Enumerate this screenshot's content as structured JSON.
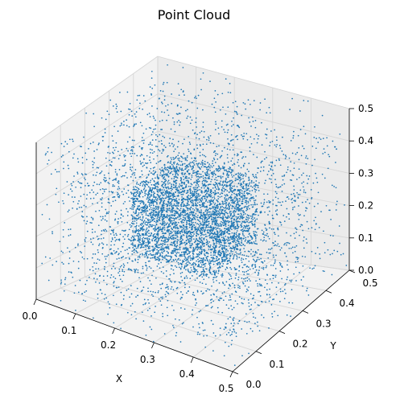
{
  "chart_data": {
    "type": "scatter",
    "projection": "3d",
    "title": "Point Cloud",
    "xlabel": "X",
    "ylabel": "Y",
    "zlabel": "",
    "xlim": [
      0.0,
      0.5
    ],
    "ylim": [
      0.0,
      0.5
    ],
    "zlim": [
      0.0,
      0.5
    ],
    "xticks": [
      "0.0",
      "0.1",
      "0.2",
      "0.3",
      "0.4",
      "0.5"
    ],
    "yticks": [
      "0.0",
      "0.1",
      "0.2",
      "0.3",
      "0.4",
      "0.5"
    ],
    "zticks": [
      "0.0",
      "0.1",
      "0.2",
      "0.3",
      "0.4",
      "0.5"
    ],
    "grid": true,
    "marker_color": "#1f77b4",
    "series": [
      {
        "distribution": "uniform in bounding box",
        "bounds": {
          "x": [
            0.0,
            0.5
          ],
          "y": [
            0.0,
            0.5
          ],
          "z": [
            0.0,
            0.5
          ]
        },
        "count": 3000
      },
      {
        "distribution": "dense cube",
        "bounds": {
          "x": [
            0.15,
            0.35
          ],
          "y": [
            0.15,
            0.35
          ],
          "z": [
            0.15,
            0.35
          ]
        },
        "count": 3000
      }
    ]
  }
}
